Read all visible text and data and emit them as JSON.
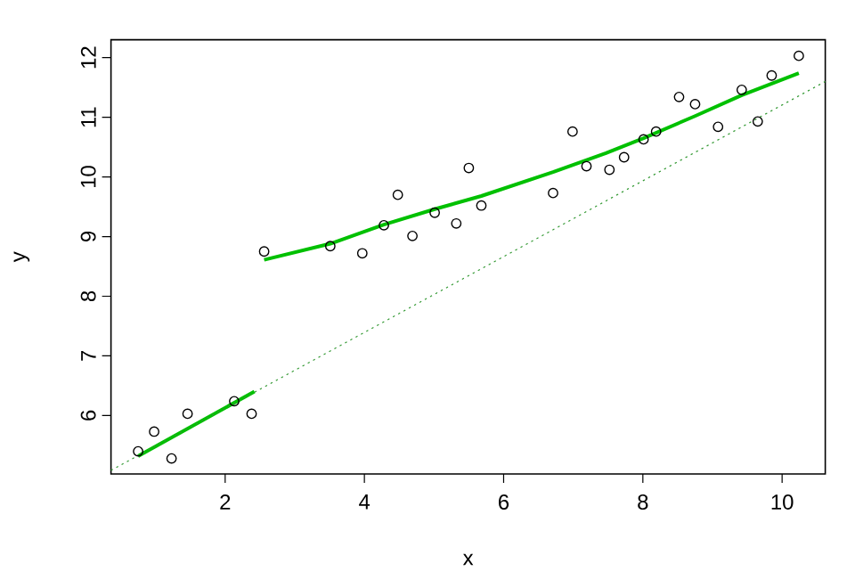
{
  "chart_data": {
    "type": "scatter",
    "xlabel": "x",
    "ylabel": "y",
    "xlim": [
      0.36,
      10.62
    ],
    "ylim": [
      5.02,
      12.3
    ],
    "xticks": [
      2,
      4,
      6,
      8,
      10
    ],
    "yticks": [
      6,
      7,
      8,
      9,
      10,
      11,
      12
    ],
    "series": [
      {
        "type": "scatter",
        "marker": "circle",
        "color": "#000000",
        "x": [
          0.75,
          0.98,
          1.23,
          1.46,
          2.13,
          2.38,
          2.56,
          3.51,
          3.97,
          4.28,
          4.48,
          4.69,
          5.01,
          5.32,
          5.5,
          5.68,
          6.71,
          6.99,
          7.19,
          7.52,
          7.73,
          8.01,
          8.19,
          8.52,
          8.75,
          9.08,
          9.42,
          9.65,
          9.85,
          10.24
        ],
        "values": [
          5.4,
          5.73,
          5.28,
          6.03,
          6.24,
          6.03,
          8.75,
          8.84,
          8.72,
          9.19,
          9.7,
          9.01,
          9.4,
          9.22,
          10.15,
          9.52,
          9.73,
          10.76,
          10.18,
          10.12,
          10.33,
          10.63,
          10.76,
          11.34,
          11.22,
          10.84,
          11.46,
          10.93,
          11.7,
          12.03
        ]
      },
      {
        "type": "line",
        "line_style": "solid",
        "color": "#00c000",
        "x": [
          0.75,
          2.42
        ],
        "values": [
          5.32,
          6.4
        ]
      },
      {
        "type": "line",
        "line_style": "solid",
        "color": "#00c000",
        "x": [
          2.56,
          3.51,
          4.28,
          5.01,
          5.68,
          6.71,
          7.47,
          8.01,
          8.75,
          9.42,
          10.24
        ],
        "values": [
          8.61,
          8.88,
          9.2,
          9.46,
          9.68,
          10.08,
          10.4,
          10.65,
          11.02,
          11.37,
          11.74
        ]
      },
      {
        "type": "line",
        "line_style": "dotted",
        "color": "#339933",
        "x": [
          0.36,
          10.62
        ],
        "values": [
          5.08,
          11.6
        ]
      }
    ]
  }
}
